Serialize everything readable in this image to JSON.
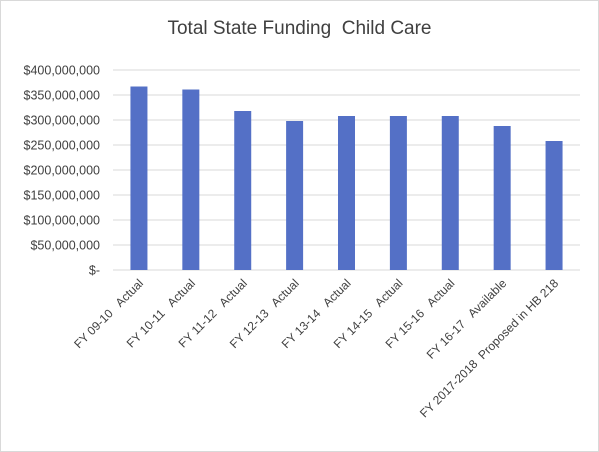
{
  "chart_data": {
    "type": "bar",
    "title": "Total State Funding  Child Care",
    "xlabel": "",
    "ylabel": "",
    "ylim": [
      0,
      400000000
    ],
    "yticks": [
      "$400,000,000",
      "$350,000,000",
      "$300,000,000",
      "$250,000,000",
      "$200,000,000",
      "$150,000,000",
      "$100,000,000",
      "$50,000,000",
      "$-"
    ],
    "ytick_values": [
      400000000,
      350000000,
      300000000,
      250000000,
      200000000,
      150000000,
      100000000,
      50000000,
      0
    ],
    "categories": [
      "FY 09-10   Actual",
      "FY 10-11   Actual",
      "FY 11-12   Actual",
      "FY 12-13   Actual",
      "FY 13-14   Actual",
      "FY 14-15   Actual",
      "FY 15-16   Actual",
      "FY 16-17   Available",
      "FY 2017-2018  Proposed in HB 218"
    ],
    "values": [
      367000000,
      361000000,
      318000000,
      298000000,
      308000000,
      308000000,
      308000000,
      288000000,
      258000000
    ],
    "grid": true,
    "colors": {
      "bar": "#5470c6",
      "grid": "#d9d9d9",
      "text": "#404040"
    }
  }
}
